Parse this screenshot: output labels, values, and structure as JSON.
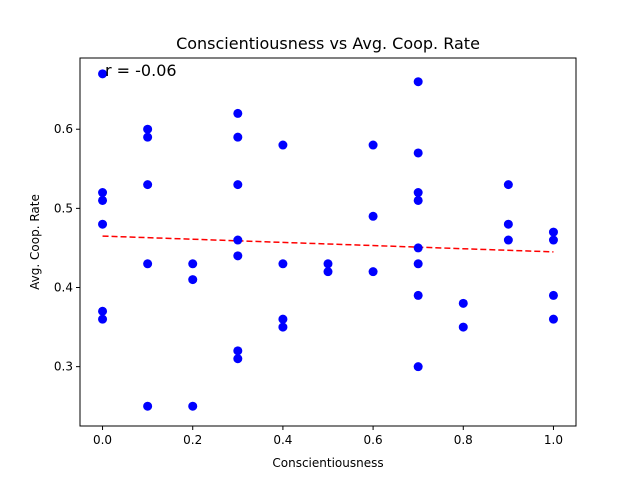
{
  "chart_data": {
    "type": "scatter",
    "title": "Conscientiousness vs Avg. Coop. Rate",
    "xlabel": "Conscientiousness",
    "ylabel": "Avg. Coop. Rate",
    "xlim": [
      -0.05,
      1.05
    ],
    "ylim": [
      0.225,
      0.69
    ],
    "xticks": [
      "0.0",
      "0.2",
      "0.4",
      "0.6",
      "0.8",
      "1.0"
    ],
    "xtick_values": [
      0.0,
      0.2,
      0.4,
      0.6,
      0.8,
      1.0
    ],
    "yticks": [
      "0.3",
      "0.4",
      "0.5",
      "0.6"
    ],
    "ytick_values": [
      0.3,
      0.4,
      0.5,
      0.6
    ],
    "grid": false,
    "point_color": "#0000ff",
    "trend_color": "#ff0000",
    "annotation": "r = -0.06",
    "trendline": {
      "x": [
        0.0,
        1.0
      ],
      "y": [
        0.465,
        0.445
      ]
    },
    "points": [
      {
        "x": 0.0,
        "y": 0.67
      },
      {
        "x": 0.0,
        "y": 0.52
      },
      {
        "x": 0.0,
        "y": 0.51
      },
      {
        "x": 0.0,
        "y": 0.48
      },
      {
        "x": 0.0,
        "y": 0.37
      },
      {
        "x": 0.0,
        "y": 0.36
      },
      {
        "x": 0.1,
        "y": 0.6
      },
      {
        "x": 0.1,
        "y": 0.59
      },
      {
        "x": 0.1,
        "y": 0.53
      },
      {
        "x": 0.1,
        "y": 0.43
      },
      {
        "x": 0.1,
        "y": 0.25
      },
      {
        "x": 0.2,
        "y": 0.43
      },
      {
        "x": 0.2,
        "y": 0.41
      },
      {
        "x": 0.2,
        "y": 0.25
      },
      {
        "x": 0.3,
        "y": 0.62
      },
      {
        "x": 0.3,
        "y": 0.59
      },
      {
        "x": 0.3,
        "y": 0.53
      },
      {
        "x": 0.3,
        "y": 0.46
      },
      {
        "x": 0.3,
        "y": 0.44
      },
      {
        "x": 0.3,
        "y": 0.32
      },
      {
        "x": 0.3,
        "y": 0.31
      },
      {
        "x": 0.4,
        "y": 0.58
      },
      {
        "x": 0.4,
        "y": 0.43
      },
      {
        "x": 0.4,
        "y": 0.36
      },
      {
        "x": 0.4,
        "y": 0.35
      },
      {
        "x": 0.5,
        "y": 0.43
      },
      {
        "x": 0.5,
        "y": 0.42
      },
      {
        "x": 0.6,
        "y": 0.58
      },
      {
        "x": 0.6,
        "y": 0.49
      },
      {
        "x": 0.6,
        "y": 0.42
      },
      {
        "x": 0.7,
        "y": 0.66
      },
      {
        "x": 0.7,
        "y": 0.57
      },
      {
        "x": 0.7,
        "y": 0.52
      },
      {
        "x": 0.7,
        "y": 0.51
      },
      {
        "x": 0.7,
        "y": 0.45
      },
      {
        "x": 0.7,
        "y": 0.43
      },
      {
        "x": 0.7,
        "y": 0.39
      },
      {
        "x": 0.7,
        "y": 0.3
      },
      {
        "x": 0.8,
        "y": 0.38
      },
      {
        "x": 0.8,
        "y": 0.35
      },
      {
        "x": 0.9,
        "y": 0.53
      },
      {
        "x": 0.9,
        "y": 0.48
      },
      {
        "x": 0.9,
        "y": 0.46
      },
      {
        "x": 1.0,
        "y": 0.47
      },
      {
        "x": 1.0,
        "y": 0.46
      },
      {
        "x": 1.0,
        "y": 0.39
      },
      {
        "x": 1.0,
        "y": 0.36
      }
    ]
  }
}
